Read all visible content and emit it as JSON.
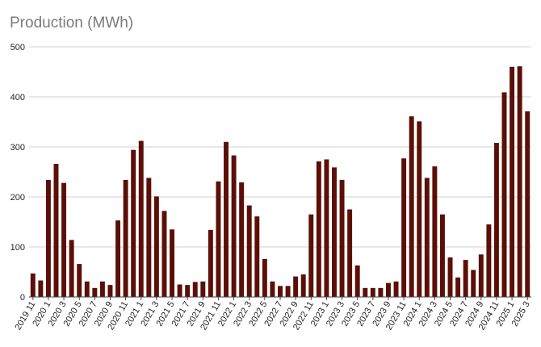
{
  "chart_data": {
    "type": "bar",
    "title": "Production (MWh)",
    "xlabel": "",
    "ylabel": "",
    "ylim": [
      0,
      500
    ],
    "yticks": [
      0,
      100,
      200,
      300,
      400,
      500
    ],
    "grid": true,
    "bar_color": "#5c0f06",
    "categories": [
      "2019 11",
      "2019 12",
      "2020 1",
      "2020 2",
      "2020 3",
      "2020 4",
      "2020 5",
      "2020 6",
      "2020 7",
      "2020 8",
      "2020 9",
      "2020 10",
      "2020 11",
      "2020 12",
      "2021 1",
      "2021 2",
      "2021 3",
      "2021 4",
      "2021 5",
      "2021 6",
      "2021 7",
      "2021 8",
      "2021 9",
      "2021 10",
      "2021 11",
      "2021 12",
      "2022 1",
      "2022 2",
      "2022 3",
      "2022 4",
      "2022 5",
      "2022 6",
      "2022 7",
      "2022 8",
      "2022 9",
      "2022 10",
      "2022 11",
      "2022 12",
      "2023 1",
      "2023 2",
      "2023 3",
      "2023 4",
      "2023 5",
      "2023 6",
      "2023 7",
      "2023 8",
      "2023 9",
      "2023 10",
      "2023 11",
      "2023 12",
      "2024 1",
      "2024 2",
      "2024 3",
      "2024 4",
      "2024 5",
      "2024 6",
      "2024 7",
      "2024 8",
      "2024 9",
      "2024 10",
      "2024 11",
      "2024 12",
      "2025 1",
      "2025 2",
      "2025 3"
    ],
    "tick_labels": [
      "2019 11",
      "2020 1",
      "2020 3",
      "2020 5",
      "2020 7",
      "2020 9",
      "2020 11",
      "2021 1",
      "2021 3",
      "2021 5",
      "2021 7",
      "2021 9",
      "2021 11",
      "2022 1",
      "2022 3",
      "2022 5",
      "2022 7",
      "2022 9",
      "2022 11",
      "2023 1",
      "2023 3",
      "2023 5",
      "2023 7",
      "2023 9",
      "2023 11",
      "2024 1",
      "2024 3",
      "2024 5",
      "2024 7",
      "2024 9",
      "2024 11",
      "2025 1",
      "2025 3"
    ],
    "values": [
      47,
      33,
      234,
      266,
      228,
      114,
      66,
      31,
      18,
      31,
      24,
      153,
      234,
      294,
      312,
      238,
      201,
      172,
      135,
      25,
      24,
      30,
      31,
      134,
      231,
      310,
      283,
      229,
      183,
      161,
      76,
      31,
      22,
      22,
      41,
      45,
      165,
      271,
      275,
      259,
      234,
      175,
      63,
      18,
      18,
      18,
      28,
      31,
      277,
      361,
      351,
      238,
      261,
      165,
      79,
      39,
      74,
      54,
      85,
      145,
      308,
      409,
      460,
      461,
      371
    ]
  }
}
